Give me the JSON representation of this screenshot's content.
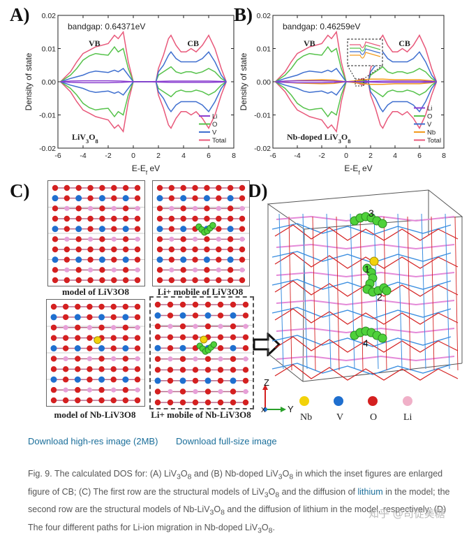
{
  "panels": {
    "a": "A)",
    "b": "B)",
    "c": "C)",
    "d": "D)"
  },
  "chart_data": [
    {
      "type": "line",
      "panel": "A",
      "annotation": "bandgap: 0.64371eV",
      "xlabel": "E-E_f eV",
      "ylabel": "Density of state",
      "xlim": [
        -6,
        8
      ],
      "ylim": [
        -0.02,
        0.02
      ],
      "xticks": [
        "-6",
        "-4",
        "-2",
        "0",
        "2",
        "4",
        "6",
        "8"
      ],
      "yticks": [
        "-0.02",
        "-0.01",
        "0.00",
        "0.01",
        "0.02"
      ],
      "region_labels": [
        "VB",
        "CB"
      ],
      "material_label": "LiV3O8",
      "legend": [
        "Li",
        "O",
        "V",
        "Total"
      ],
      "series": [
        {
          "name": "Total",
          "color": "#e8587a",
          "x": [
            -5.8,
            -5.0,
            -4.5,
            -4.0,
            -3.5,
            -3.0,
            -2.5,
            -2.0,
            -1.5,
            -1.2,
            -0.8,
            -0.4,
            0.0,
            0.6,
            1.2,
            1.8,
            2.0,
            2.4,
            2.8,
            3.0,
            3.4,
            3.8,
            4.2,
            4.6,
            5.0,
            5.5,
            6.0,
            6.5,
            7.0,
            7.4
          ],
          "y": [
            0.0,
            0.003,
            0.006,
            0.0085,
            0.0095,
            0.0105,
            0.011,
            0.0115,
            0.014,
            0.013,
            0.015,
            0.006,
            0.0,
            0.0,
            0.0,
            0.0,
            0.004,
            0.008,
            0.013,
            0.014,
            0.011,
            0.009,
            0.009,
            0.01,
            0.009,
            0.011,
            0.014,
            0.01,
            0.004,
            0.0
          ]
        },
        {
          "name": "O",
          "color": "#55c24a",
          "x": [
            -5.8,
            -5.0,
            -4.5,
            -4.0,
            -3.5,
            -3.0,
            -2.5,
            -2.0,
            -1.5,
            -1.2,
            -0.8,
            -0.4,
            0.0,
            0.6,
            1.2,
            1.8,
            2.0,
            2.4,
            2.8,
            3.0,
            3.4,
            3.8,
            4.2,
            4.6,
            5.0,
            5.5,
            6.0,
            6.5,
            7.0,
            7.4
          ],
          "y": [
            0.0,
            0.002,
            0.004,
            0.0065,
            0.0078,
            0.0085,
            0.0082,
            0.008,
            0.0105,
            0.009,
            0.01,
            0.004,
            0.0,
            0.0,
            0.0,
            0.0,
            0.002,
            0.003,
            0.004,
            0.0045,
            0.003,
            0.0025,
            0.003,
            0.003,
            0.0025,
            0.003,
            0.004,
            0.003,
            0.001,
            0.0
          ]
        },
        {
          "name": "V",
          "color": "#3f6fcf",
          "x": [
            -5.8,
            -5.0,
            -4.5,
            -4.0,
            -3.5,
            -3.0,
            -2.5,
            -2.0,
            -1.5,
            -1.2,
            -0.8,
            -0.4,
            0.0,
            0.6,
            1.2,
            1.8,
            2.0,
            2.4,
            2.8,
            3.0,
            3.4,
            3.8,
            4.2,
            4.6,
            5.0,
            5.5,
            6.0,
            6.5,
            7.0,
            7.4
          ],
          "y": [
            0.0,
            0.001,
            0.0015,
            0.002,
            0.0028,
            0.0032,
            0.003,
            0.0028,
            0.0035,
            0.003,
            0.004,
            0.002,
            0.0,
            0.0,
            0.0,
            0.0,
            0.003,
            0.005,
            0.008,
            0.009,
            0.007,
            0.006,
            0.006,
            0.006,
            0.006,
            0.007,
            0.009,
            0.006,
            0.002,
            0.0
          ]
        },
        {
          "name": "Li",
          "color": "#8a3fd0",
          "x": [
            -5.8,
            -5.0,
            -4.0,
            -3.0,
            -2.0,
            -1.0,
            0.0,
            1.0,
            2.0,
            3.0,
            4.0,
            5.0,
            6.0,
            7.0,
            7.4
          ],
          "y": [
            0.0,
            0.0002,
            0.0003,
            0.0003,
            0.0003,
            0.0002,
            0.0,
            0.0,
            0.0001,
            0.0002,
            0.0002,
            0.0002,
            0.0002,
            0.0001,
            0.0
          ]
        }
      ]
    },
    {
      "type": "line",
      "panel": "B",
      "annotation": "bandgap: 0.46259eV",
      "xlabel": "E-E_f eV",
      "ylabel": "Density of state",
      "xlim": [
        -6,
        8
      ],
      "ylim": [
        -0.02,
        0.02
      ],
      "xticks": [
        "-6",
        "-4",
        "-2",
        "0",
        "2",
        "4",
        "6",
        "8"
      ],
      "yticks": [
        "-0.02",
        "-0.01",
        "0.00",
        "0.01",
        "0.02"
      ],
      "region_labels": [
        "VB",
        "CB"
      ],
      "material_label": "Nb-doped LiV3O8",
      "legend": [
        "Li",
        "O",
        "V",
        "Nb",
        "Total"
      ],
      "series": [
        {
          "name": "Total",
          "color": "#e8587a",
          "x": [
            -5.8,
            -5.0,
            -4.5,
            -4.0,
            -3.5,
            -3.0,
            -2.5,
            -2.0,
            -1.5,
            -1.2,
            -0.8,
            -0.4,
            0.0,
            0.5,
            1.0,
            1.4,
            1.8,
            2.0,
            2.4,
            2.8,
            3.0,
            3.4,
            3.8,
            4.2,
            4.6,
            5.0,
            5.5,
            6.0,
            6.5,
            7.0,
            7.4
          ],
          "y": [
            0.0,
            0.003,
            0.006,
            0.0085,
            0.0095,
            0.0105,
            0.011,
            0.0115,
            0.014,
            0.013,
            0.015,
            0.006,
            0.0,
            0.0,
            0.0005,
            0.001,
            0.0,
            0.004,
            0.008,
            0.013,
            0.014,
            0.011,
            0.009,
            0.009,
            0.01,
            0.009,
            0.011,
            0.014,
            0.01,
            0.004,
            0.0
          ]
        },
        {
          "name": "O",
          "color": "#55c24a",
          "x": [
            -5.8,
            -5.0,
            -4.5,
            -4.0,
            -3.5,
            -3.0,
            -2.5,
            -2.0,
            -1.5,
            -1.2,
            -0.8,
            -0.4,
            0.0,
            0.5,
            1.0,
            1.4,
            1.8,
            2.0,
            2.4,
            2.8,
            3.0,
            3.4,
            3.8,
            4.2,
            4.6,
            5.0,
            5.5,
            6.0,
            6.5,
            7.0,
            7.4
          ],
          "y": [
            0.0,
            0.002,
            0.004,
            0.0065,
            0.0078,
            0.0085,
            0.0082,
            0.008,
            0.0105,
            0.009,
            0.01,
            0.004,
            0.0,
            0.0,
            0.0002,
            0.0004,
            0.0,
            0.002,
            0.003,
            0.004,
            0.0045,
            0.003,
            0.0025,
            0.003,
            0.003,
            0.0025,
            0.003,
            0.004,
            0.003,
            0.001,
            0.0
          ]
        },
        {
          "name": "V",
          "color": "#3f6fcf",
          "x": [
            -5.8,
            -5.0,
            -4.5,
            -4.0,
            -3.5,
            -3.0,
            -2.5,
            -2.0,
            -1.5,
            -1.2,
            -0.8,
            -0.4,
            0.0,
            0.5,
            1.0,
            1.4,
            1.8,
            2.0,
            2.4,
            2.8,
            3.0,
            3.4,
            3.8,
            4.2,
            4.6,
            5.0,
            5.5,
            6.0,
            6.5,
            7.0,
            7.4
          ],
          "y": [
            0.0,
            0.001,
            0.0015,
            0.002,
            0.0028,
            0.0032,
            0.003,
            0.0028,
            0.0035,
            0.003,
            0.004,
            0.002,
            0.0,
            0.0,
            0.0003,
            0.0006,
            0.0,
            0.003,
            0.005,
            0.008,
            0.009,
            0.007,
            0.006,
            0.006,
            0.006,
            0.006,
            0.007,
            0.009,
            0.006,
            0.002,
            0.0
          ]
        },
        {
          "name": "Nb",
          "color": "#f29a1c",
          "x": [
            -5.8,
            -4.0,
            -2.0,
            -1.0,
            0.0,
            1.0,
            1.4,
            2.0,
            3.0,
            4.0,
            5.0,
            6.0,
            7.0,
            7.4
          ],
          "y": [
            0.0,
            0.0004,
            0.0006,
            0.0005,
            0.0,
            0.0004,
            0.0006,
            0.0008,
            0.0008,
            0.0006,
            0.0006,
            0.0006,
            0.0003,
            0.0
          ]
        },
        {
          "name": "Li",
          "color": "#8a3fd0",
          "x": [
            -5.8,
            -5.0,
            -4.0,
            -3.0,
            -2.0,
            -1.0,
            0.0,
            1.0,
            2.0,
            3.0,
            4.0,
            5.0,
            6.0,
            7.0,
            7.4
          ],
          "y": [
            0.0,
            0.0002,
            0.0003,
            0.0003,
            0.0003,
            0.0002,
            0.0,
            0.0,
            0.0001,
            0.0002,
            0.0002,
            0.0002,
            0.0002,
            0.0001,
            0.0
          ]
        }
      ]
    }
  ],
  "models": {
    "c1": "model of LiV3O8",
    "c2": "Li+ mobile of LiV3O8",
    "c3": "model of Nb-LiV3O8",
    "c4": "Li+ mobile of Nb-LiV3O8"
  },
  "paths": [
    "1",
    "2",
    "3",
    "4"
  ],
  "axes_labels": {
    "z": "Z",
    "y": "Y",
    "x": "X"
  },
  "atom_legend": [
    {
      "label": "Nb",
      "color": "#f2d20a"
    },
    {
      "label": "V",
      "color": "#1f6fcf"
    },
    {
      "label": "O",
      "color": "#d42020"
    },
    {
      "label": "Li",
      "color": "#f0b0c8"
    }
  ],
  "links": {
    "hires": "Download high-res image (2MB)",
    "full": "Download full-size image"
  },
  "caption": {
    "p1": "Fig. 9. The calculated DOS for: (A) LiV",
    "p2": "3",
    "p3": "O",
    "p4": "8",
    "p5": " and (B) Nb-doped LiV",
    "p6": "3",
    "p7": "O",
    "p8": "8",
    "p9": " in which the inset figures are enlarged figure of CB; (C) The first row are the structural models of LiV",
    "p10": "3",
    "p11": "O",
    "p12": "8",
    "p13": " and the diffusion of ",
    "link": "lithium",
    "p14": " in the model; the second row are the structural models of Nb-LiV",
    "p15": "3",
    "p16": "O",
    "p17": "8",
    "p18": " and the diffusion of lithium in the model, respectively; (D) The four different paths for Li-ion migration in Nb-doped LiV",
    "p19": "3",
    "p20": "O",
    "p21": "8",
    "p22": "."
  },
  "watermark": "知乎 @司徒美糖"
}
